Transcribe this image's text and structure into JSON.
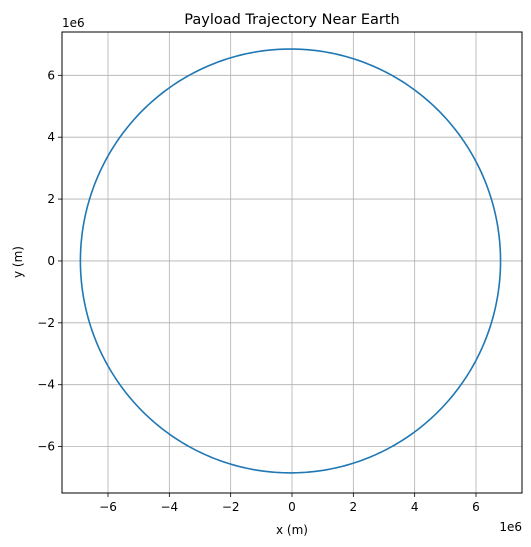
{
  "chart_data": {
    "type": "line",
    "title": "Payload Trajectory Near Earth",
    "xlabel": "x (m)",
    "ylabel": "y (m)",
    "x_offset_label": "1e6",
    "y_offset_label": "1e6",
    "x_scale": 1000000,
    "y_scale": 1000000,
    "xlim": [
      -7500000,
      7500000
    ],
    "ylim": [
      -7500000,
      7400000
    ],
    "xticks": [
      -6000000,
      -4000000,
      -2000000,
      0,
      2000000,
      4000000,
      6000000
    ],
    "yticks": [
      -6000000,
      -4000000,
      -2000000,
      0,
      2000000,
      4000000,
      6000000
    ],
    "xtick_labels": [
      "−6",
      "−4",
      "−2",
      "0",
      "2",
      "4",
      "6"
    ],
    "ytick_labels": [
      "−6",
      "−4",
      "−2",
      "0",
      "2",
      "4",
      "6"
    ],
    "grid": true,
    "line_color": "#1f77b4",
    "series": [
      {
        "shape": "circular orbit",
        "center": [
          -50000,
          0
        ],
        "radius": 6850000
      }
    ]
  }
}
